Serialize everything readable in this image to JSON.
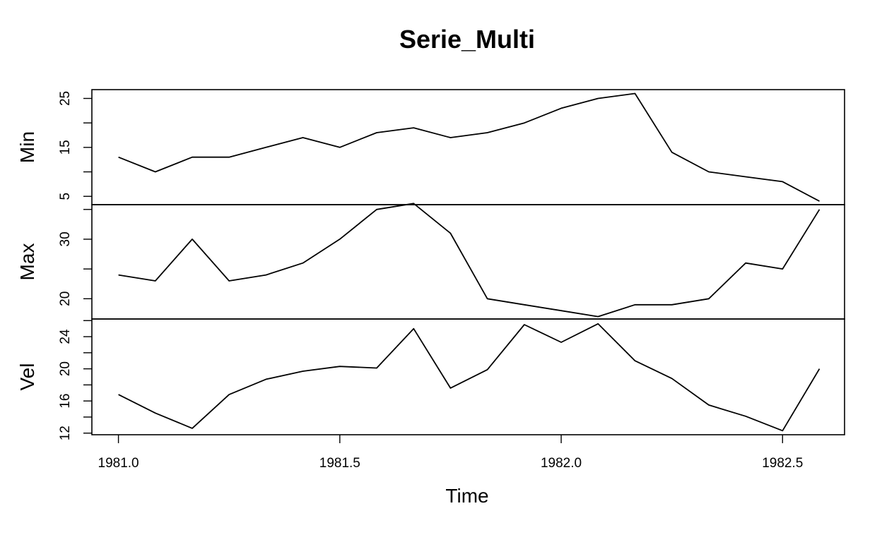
{
  "chart_data": {
    "type": "line",
    "title": "Serie_Multi",
    "xlabel": "Time",
    "x": [
      1981.0,
      1981.0833,
      1981.1667,
      1981.25,
      1981.3333,
      1981.4167,
      1981.5,
      1981.5833,
      1981.6667,
      1981.75,
      1981.8333,
      1981.9167,
      1982.0,
      1982.0833,
      1982.1667,
      1982.25,
      1982.3333,
      1982.4167,
      1982.5,
      1982.5833
    ],
    "xlim": [
      1980.94,
      1982.64
    ],
    "xticks": [
      1981.0,
      1981.5,
      1982.0,
      1982.5
    ],
    "xtick_labels": [
      "1981.0",
      "1981.5",
      "1982.0",
      "1982.5"
    ],
    "panels": [
      {
        "name": "Min",
        "ylim": [
          3.3,
          26.8
        ],
        "yticks": [
          5,
          10,
          15,
          20,
          25
        ],
        "ytick_labels": [
          "5",
          "",
          "15",
          "",
          "25"
        ],
        "values": [
          13,
          10,
          13,
          13,
          15,
          17,
          15,
          18,
          19,
          17,
          18,
          20,
          23,
          25,
          26,
          14,
          10,
          9,
          8,
          4
        ]
      },
      {
        "name": "Max",
        "ylim": [
          16.6,
          35.8
        ],
        "yticks": [
          20,
          25,
          30,
          35
        ],
        "ytick_labels": [
          "20",
          "",
          "30",
          ""
        ],
        "values": [
          24,
          23,
          30,
          23,
          24,
          26,
          30,
          35,
          36,
          31,
          20,
          19,
          18,
          17,
          19,
          19,
          20,
          26,
          25,
          35
        ]
      },
      {
        "name": "Vel",
        "ylim": [
          11.8,
          26.2
        ],
        "yticks": [
          12,
          14,
          16,
          18,
          20,
          22,
          24,
          26
        ],
        "ytick_labels": [
          "12",
          "",
          "16",
          "",
          "20",
          "",
          "24",
          ""
        ],
        "values": [
          16.8,
          14.5,
          12.6,
          16.8,
          18.7,
          19.7,
          20.3,
          20.1,
          25.0,
          17.6,
          19.9,
          25.5,
          23.3,
          25.6,
          21.0,
          18.8,
          15.5,
          14.1,
          12.3,
          20.0
        ]
      }
    ],
    "grid": false,
    "legend": "none"
  }
}
